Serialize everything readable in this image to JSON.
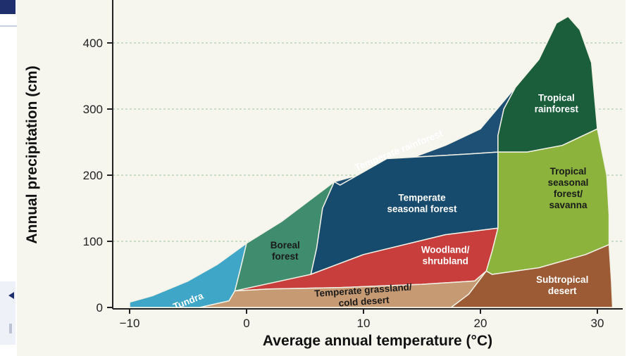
{
  "chart_data": {
    "type": "area",
    "xlabel": "Average annual temperature (°C)",
    "ylabel": "Annual precipitation (cm)",
    "xlim": [
      -11,
      32
    ],
    "ylim": [
      0,
      440
    ],
    "x_ticks": [
      -10,
      0,
      10,
      20,
      30
    ],
    "y_ticks": [
      0,
      100,
      200,
      300,
      400
    ],
    "grid": "horizontal dashed at y ticks",
    "regions": [
      {
        "name": "Tundra",
        "color": "#3fa6c8",
        "label_lines": [
          "Tundra"
        ],
        "label_at": [
          -5,
          10
        ],
        "label_rotate": -22,
        "polygon": [
          [
            -10,
            8
          ],
          [
            -8,
            18
          ],
          [
            -5,
            40
          ],
          [
            -2.5,
            65
          ],
          [
            0,
            97
          ],
          [
            -0.5,
            60
          ],
          [
            -1,
            25
          ],
          [
            -1.5,
            10
          ],
          [
            -4,
            0
          ],
          [
            -10,
            0
          ]
        ]
      },
      {
        "name": "Boreal forest",
        "color": "#3f8c6f",
        "label_lines": [
          "Boreal",
          "forest"
        ],
        "label_at": [
          3.3,
          86
        ],
        "label_rotate": 0,
        "polygon": [
          [
            0,
            97
          ],
          [
            3,
            130
          ],
          [
            6,
            170
          ],
          [
            7.5,
            190
          ],
          [
            6.5,
            150
          ],
          [
            6,
            90
          ],
          [
            5.5,
            50
          ],
          [
            4,
            35
          ],
          [
            2,
            28
          ],
          [
            -1,
            25
          ],
          [
            -0.5,
            60
          ]
        ]
      },
      {
        "name": "Temperate rainforest",
        "color": "#1e4f75",
        "label_lines": [
          "Temperate rainforest"
        ],
        "label_at": [
          13,
          238
        ],
        "label_rotate": -22,
        "polygon": [
          [
            7.5,
            190
          ],
          [
            12,
            212
          ],
          [
            17,
            245
          ],
          [
            20,
            270
          ],
          [
            23,
            333
          ],
          [
            22,
            300
          ],
          [
            21.5,
            260
          ],
          [
            21.5,
            235
          ],
          [
            19,
            232
          ],
          [
            12,
            225
          ],
          [
            8,
            185
          ]
        ]
      },
      {
        "name": "Temperate seasonal forest",
        "color": "#174b6e",
        "label_lines": [
          "Temperate",
          "seasonal forest"
        ],
        "label_at": [
          15,
          158
        ],
        "label_rotate": 0,
        "polygon": [
          [
            8,
            185
          ],
          [
            12,
            225
          ],
          [
            19,
            232
          ],
          [
            21.5,
            235
          ],
          [
            21.5,
            180
          ],
          [
            21.5,
            120
          ],
          [
            17,
            110
          ],
          [
            10,
            80
          ],
          [
            5.5,
            50
          ],
          [
            6,
            90
          ],
          [
            6.5,
            150
          ],
          [
            7.5,
            190
          ]
        ]
      },
      {
        "name": "Woodland/ shrubland",
        "color": "#c73e3c",
        "label_lines": [
          "Woodland/",
          "shrubland"
        ],
        "label_at": [
          17,
          79
        ],
        "label_rotate": 0,
        "polygon": [
          [
            5.5,
            50
          ],
          [
            10,
            80
          ],
          [
            17,
            110
          ],
          [
            21.5,
            120
          ],
          [
            21,
            85
          ],
          [
            20.5,
            55
          ],
          [
            19.5,
            40
          ],
          [
            15,
            35
          ],
          [
            8,
            30
          ],
          [
            2,
            28
          ],
          [
            -1,
            25
          ]
        ]
      },
      {
        "name": "Temperate grassland/ cold desert",
        "color": "#c69b74",
        "label_lines": [
          "Temperate grassland/",
          "cold desert"
        ],
        "label_at": [
          10,
          18
        ],
        "label_rotate": -4,
        "polygon": [
          [
            -1,
            25
          ],
          [
            2,
            28
          ],
          [
            8,
            30
          ],
          [
            15,
            35
          ],
          [
            19.5,
            40
          ],
          [
            20.5,
            55
          ],
          [
            19,
            20
          ],
          [
            17.5,
            0
          ],
          [
            -4,
            0
          ],
          [
            -1.5,
            10
          ]
        ]
      },
      {
        "name": "Tropical rainforest",
        "color": "#1a5e3c",
        "label_lines": [
          "Tropical",
          "rainforest"
        ],
        "label_at": [
          26.5,
          309
        ],
        "label_rotate": 0,
        "polygon": [
          [
            23,
            333
          ],
          [
            25,
            375
          ],
          [
            26.5,
            430
          ],
          [
            27.5,
            440
          ],
          [
            28.5,
            420
          ],
          [
            29.5,
            370
          ],
          [
            30,
            270
          ],
          [
            27,
            245
          ],
          [
            24,
            235
          ],
          [
            21.5,
            235
          ],
          [
            21.5,
            260
          ],
          [
            22,
            300
          ]
        ]
      },
      {
        "name": "Tropical seasonal forest/ savanna",
        "color": "#8cb43c",
        "label_lines": [
          "Tropical",
          "seasonal",
          "forest/",
          "savanna"
        ],
        "label_at": [
          27.5,
          181
        ],
        "label_rotate": 0,
        "polygon": [
          [
            21.5,
            235
          ],
          [
            24,
            235
          ],
          [
            27,
            245
          ],
          [
            30,
            270
          ],
          [
            30.8,
            200
          ],
          [
            31,
            140
          ],
          [
            31,
            95
          ],
          [
            29,
            80
          ],
          [
            25,
            60
          ],
          [
            21,
            50
          ],
          [
            20.5,
            55
          ],
          [
            21,
            85
          ],
          [
            21.5,
            120
          ],
          [
            21.5,
            180
          ]
        ]
      },
      {
        "name": "Subtropical desert",
        "color": "#9c5b34",
        "label_lines": [
          "Subtropical",
          "desert"
        ],
        "label_at": [
          27,
          34
        ],
        "label_rotate": 0,
        "polygon": [
          [
            20.5,
            55
          ],
          [
            21,
            50
          ],
          [
            25,
            60
          ],
          [
            29,
            80
          ],
          [
            31,
            95
          ],
          [
            31.2,
            40
          ],
          [
            31.3,
            0
          ],
          [
            17.5,
            0
          ],
          [
            19,
            20
          ]
        ]
      }
    ]
  }
}
